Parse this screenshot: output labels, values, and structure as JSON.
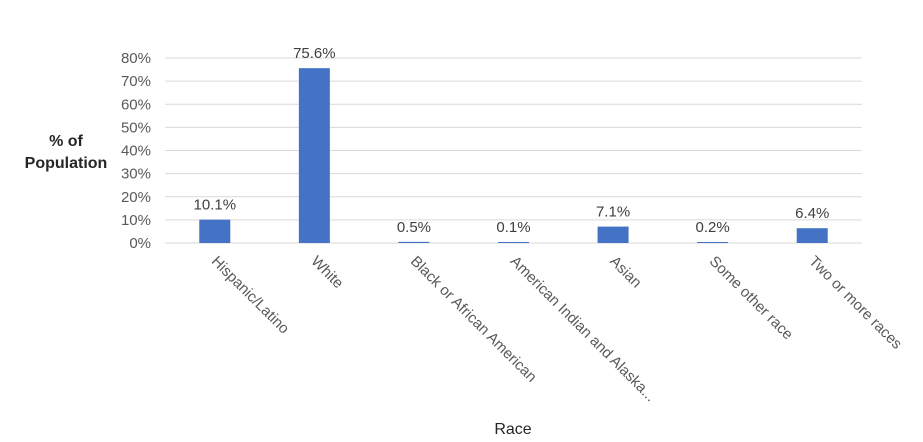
{
  "chart_data": {
    "type": "bar",
    "categories": [
      "Hispanic/Latino",
      "White",
      "Black or African American",
      "American Indian and Alaska...",
      "Asian",
      "Some other race",
      "Two or more races"
    ],
    "values": [
      10.1,
      75.6,
      0.5,
      0.1,
      7.1,
      0.2,
      6.4
    ],
    "data_labels": [
      "10.1%",
      "75.6%",
      "0.5%",
      "0.1%",
      "7.1%",
      "0.2%",
      "6.4%"
    ],
    "y_ticks": [
      "0%",
      "10%",
      "20%",
      "30%",
      "40%",
      "50%",
      "60%",
      "70%",
      "80%"
    ],
    "ylim": [
      0,
      80
    ],
    "ylabel_lines": [
      "% of",
      "Population"
    ],
    "xlabel": "Race",
    "bar_color": "#4472c4",
    "grid": true,
    "legend": "none"
  }
}
